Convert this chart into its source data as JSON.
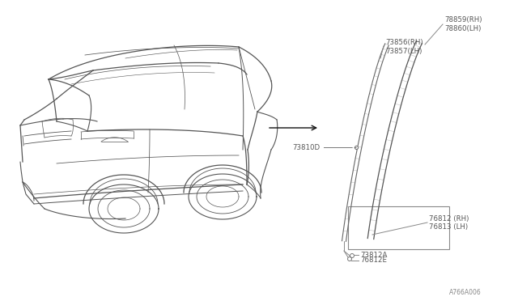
{
  "bg_color": "#ffffff",
  "diagram_number": "A766A006",
  "labels": {
    "part1_rh": "78859(RH)",
    "part1_lh": "78860(LH)",
    "part2_rh": "73856(RH)",
    "part2_lh": "73857(LH)",
    "part3": "73810D",
    "part4_rh": "76812 (RH)",
    "part4_lh": "76813 (LH)",
    "part5": "73812A",
    "part6": "76812E"
  },
  "car_color": "#555555",
  "molding_color": "#888888",
  "arrow_color": "#111111",
  "text_color": "#555555"
}
